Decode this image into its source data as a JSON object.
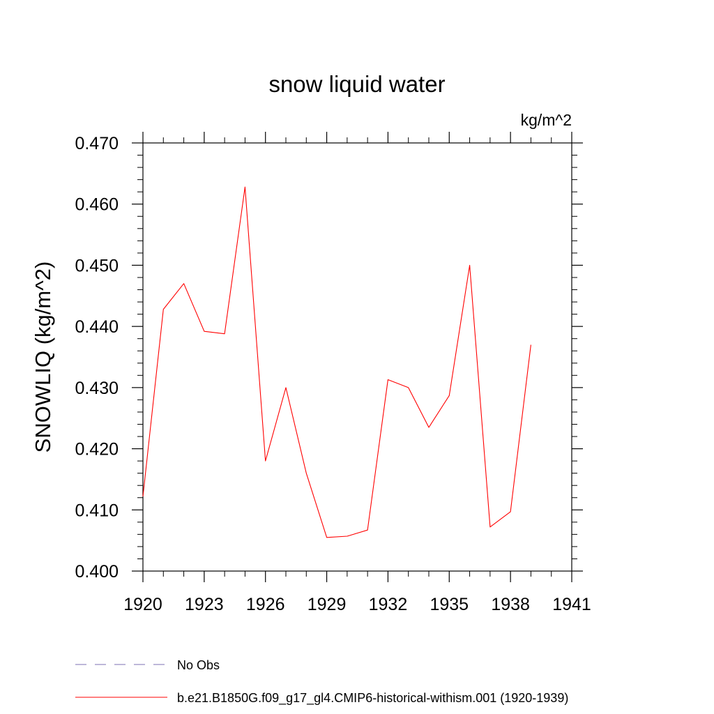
{
  "chart_data": {
    "type": "line",
    "title": "snow liquid water",
    "units_label": "kg/m^2",
    "ylabel": "SNOWLIQ  (kg/m^2)",
    "xlabel": "",
    "xlim": [
      1920,
      1941
    ],
    "ylim": [
      0.4,
      0.47
    ],
    "x_ticks": [
      1920,
      1923,
      1926,
      1929,
      1932,
      1935,
      1938,
      1941
    ],
    "x_tick_labels": [
      "1920",
      "1923",
      "1926",
      "1929",
      "1932",
      "1935",
      "1938",
      "1941"
    ],
    "y_ticks": [
      0.4,
      0.41,
      0.42,
      0.43,
      0.44,
      0.45,
      0.46,
      0.47
    ],
    "y_tick_labels": [
      "0.400",
      "0.410",
      "0.420",
      "0.430",
      "0.440",
      "0.450",
      "0.460",
      "0.470"
    ],
    "grid": false,
    "legend_position": "bottom-left",
    "series": [
      {
        "name": "b.e21.B1850G.f09_g17_gl4.CMIP6-historical-withism.001 (1920-1939)",
        "color": "#ff0000",
        "style": "solid",
        "x": [
          1920,
          1921,
          1922,
          1923,
          1924,
          1925,
          1926,
          1927,
          1928,
          1929,
          1930,
          1931,
          1932,
          1933,
          1934,
          1935,
          1936,
          1937,
          1938,
          1939
        ],
        "y": [
          0.4122,
          0.4428,
          0.447,
          0.4392,
          0.4388,
          0.4628,
          0.418,
          0.43,
          0.416,
          0.4055,
          0.4057,
          0.4067,
          0.4313,
          0.43,
          0.4235,
          0.4287,
          0.45,
          0.4072,
          0.4097,
          0.437
        ]
      }
    ],
    "legend": [
      {
        "label": "No Obs",
        "color": "#7b6fb3",
        "style": "dashed"
      },
      {
        "label": "b.e21.B1850G.f09_g17_gl4.CMIP6-historical-withism.001 (1920-1939)",
        "color": "#ff0000",
        "style": "solid"
      }
    ]
  }
}
